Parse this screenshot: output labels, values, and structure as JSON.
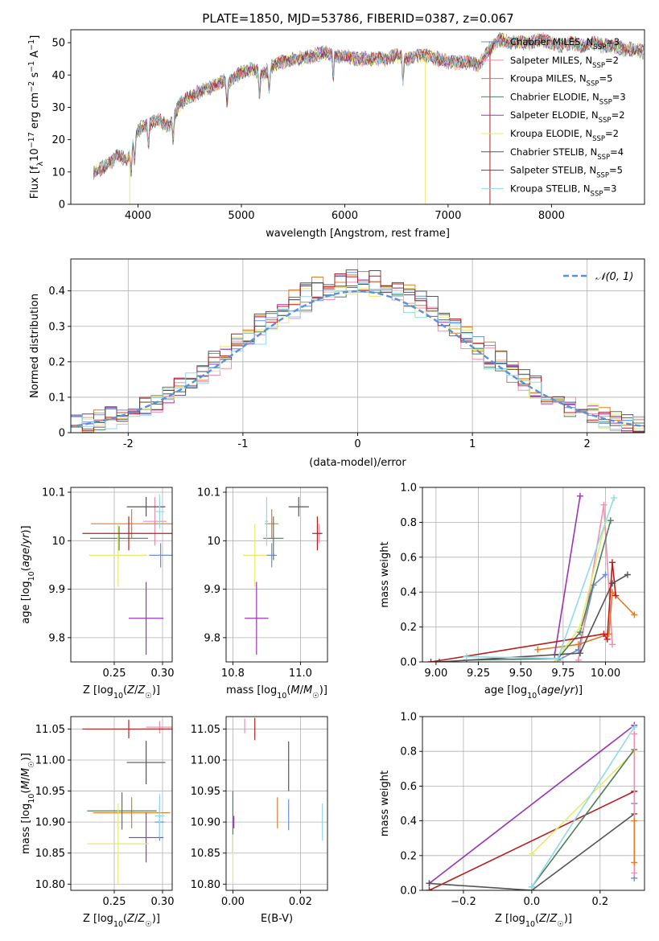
{
  "title": "PLATE=1850, MJD=53786, FIBERID=0387, z=0.067",
  "colors": {
    "Chabrier MILES": "#6c8ed8",
    "Salpeter MILES": "#ef8fb0",
    "Kroupa MILES": "#e07b27",
    "Chabrier ELODIE": "#4f7d5a",
    "Salpeter ELODIE": "#9a35b3",
    "Kroupa ELODIE": "#e6ea6a",
    "Chabrier STELIB": "#555555",
    "Salpeter STELIB": "#b71f1f",
    "Kroupa STELIB": "#8fd9e8"
  },
  "legend": [
    {
      "model": "Chabrier MILES",
      "text": "Chabrier MILES, N",
      "sub": "SSP",
      "n": "=3"
    },
    {
      "model": "Salpeter MILES",
      "text": "Salpeter MILES, N",
      "sub": "SSP",
      "n": "=2"
    },
    {
      "model": "Kroupa MILES",
      "text": "Kroupa MILES, N",
      "sub": "SSP",
      "n": "=5"
    },
    {
      "model": "Chabrier ELODIE",
      "text": "Chabrier ELODIE, N",
      "sub": "SSP",
      "n": "=3"
    },
    {
      "model": "Salpeter ELODIE",
      "text": "Salpeter ELODIE, N",
      "sub": "SSP",
      "n": "=2"
    },
    {
      "model": "Kroupa ELODIE",
      "text": "Kroupa ELODIE, N",
      "sub": "SSP",
      "n": "=2"
    },
    {
      "model": "Chabrier STELIB",
      "text": "Chabrier STELIB, N",
      "sub": "SSP",
      "n": "=4"
    },
    {
      "model": "Salpeter STELIB",
      "text": "Salpeter STELIB, N",
      "sub": "SSP",
      "n": "=5"
    },
    {
      "model": "Kroupa STELIB",
      "text": "Kroupa STELIB, N",
      "sub": "SSP",
      "n": "=3"
    }
  ],
  "chart_data": [
    {
      "id": "spectrum",
      "type": "line",
      "title": "PLATE=1850, MJD=53786, FIBERID=0387, z=0.067",
      "xlabel": "wavelength [Angstrom, rest frame]",
      "ylabel": "Flux [f_λ 10^-17 erg cm^-2 s^-1 A^-1]",
      "xlim": [
        3350,
        8900
      ],
      "ylim": [
        0,
        54
      ],
      "xticks": [
        4000,
        5000,
        6000,
        7000,
        8000
      ],
      "yticks": [
        0,
        10,
        20,
        30,
        40,
        50
      ],
      "continuum": [
        [
          3570,
          10
        ],
        [
          3700,
          12
        ],
        [
          3800,
          15
        ],
        [
          3900,
          14
        ],
        [
          4000,
          23
        ],
        [
          4100,
          25
        ],
        [
          4200,
          26
        ],
        [
          4300,
          24
        ],
        [
          4400,
          31
        ],
        [
          4500,
          33
        ],
        [
          4600,
          35
        ],
        [
          4700,
          36
        ],
        [
          4800,
          38
        ],
        [
          4900,
          38
        ],
        [
          5000,
          41
        ],
        [
          5100,
          42
        ],
        [
          5200,
          40
        ],
        [
          5300,
          43
        ],
        [
          5400,
          44
        ],
        [
          5500,
          45
        ],
        [
          5600,
          45
        ],
        [
          5700,
          46
        ],
        [
          5800,
          47
        ],
        [
          5900,
          46
        ],
        [
          6000,
          46
        ],
        [
          6100,
          45
        ],
        [
          6200,
          45
        ],
        [
          6300,
          45
        ],
        [
          6400,
          45
        ],
        [
          6500,
          46
        ],
        [
          6600,
          45
        ],
        [
          6700,
          46
        ],
        [
          6800,
          46
        ],
        [
          6900,
          45
        ],
        [
          7000,
          44
        ],
        [
          7100,
          44
        ],
        [
          7200,
          44
        ],
        [
          7300,
          43
        ],
        [
          7400,
          48
        ],
        [
          7500,
          51
        ],
        [
          7600,
          50
        ],
        [
          7700,
          50
        ],
        [
          7800,
          50
        ],
        [
          7900,
          51
        ],
        [
          8000,
          50
        ],
        [
          8100,
          49
        ],
        [
          8200,
          50
        ],
        [
          8300,
          49
        ],
        [
          8400,
          50
        ],
        [
          8500,
          49
        ],
        [
          8600,
          49
        ],
        [
          8700,
          48
        ],
        [
          8800,
          48
        ],
        [
          8900,
          47
        ]
      ],
      "absorption_lines": [
        3934,
        3968,
        4101,
        4340,
        4861,
        5175,
        5270,
        5890,
        6563
      ],
      "spikes": [
        {
          "x": 3920,
          "model": "Kroupa ELODIE"
        },
        {
          "x": 6780,
          "model": "Kroupa ELODIE"
        },
        {
          "x": 7405,
          "model": "Salpeter STELIB"
        }
      ]
    },
    {
      "id": "residuals",
      "type": "area",
      "xlabel": "(data-model)/error",
      "ylabel": "Normed distribution",
      "xlim": [
        -2.5,
        2.5
      ],
      "ylim": [
        0,
        0.49
      ],
      "xticks": [
        -2,
        -1,
        0,
        1,
        2
      ],
      "yticks": [
        0.0,
        0.1,
        0.2,
        0.3,
        0.4
      ],
      "bin_width": 0.1,
      "series": [
        {
          "name": "Chabrier MILES",
          "amp": 1.06,
          "mode": 0.0
        },
        {
          "name": "Salpeter MILES",
          "amp": 1.02,
          "mode": 0.0
        },
        {
          "name": "Kroupa MILES",
          "amp": 1.1,
          "mode": 0.0
        },
        {
          "name": "Chabrier ELODIE",
          "amp": 1.04,
          "mode": 0.0
        },
        {
          "name": "Salpeter ELODIE",
          "amp": 1.08,
          "mode": 0.0
        },
        {
          "name": "Kroupa ELODIE",
          "amp": 1.05,
          "mode": 0.0
        },
        {
          "name": "Chabrier STELIB",
          "amp": 1.1,
          "mode": 0.0
        },
        {
          "name": "Salpeter STELIB",
          "amp": 1.08,
          "mode": 0.0
        },
        {
          "name": "Kroupa STELIB",
          "amp": 1.0,
          "mode": 0.0
        }
      ],
      "reference": {
        "name": "𝒩(0, 1)",
        "mean": 0,
        "sd": 1
      }
    },
    {
      "id": "age_vs_Z",
      "type": "scatter",
      "xlabel": "Z [log10(Z/Z☉)]",
      "ylabel": "age [log10(age/yr)]",
      "xlim": [
        0.205,
        0.31
      ],
      "ylim": [
        9.75,
        10.11
      ],
      "xticks": [
        0.25,
        0.3
      ],
      "xticklabels": [
        "0.25",
        "0.30"
      ],
      "yticks": [
        9.8,
        9.9,
        10.0,
        10.1
      ],
      "points": [
        {
          "model": "Chabrier MILES",
          "x": 0.298,
          "xerr": 0.012,
          "y": 9.97,
          "yerr": 0.025
        },
        {
          "model": "Salpeter MILES",
          "x": 0.292,
          "xerr": 0.012,
          "y": 10.04,
          "yerr": 0.05
        },
        {
          "model": "Kroupa MILES",
          "x": 0.268,
          "xerr": 0.042,
          "y": 10.035,
          "yerr": 0.03
        },
        {
          "model": "Chabrier ELODIE",
          "x": 0.255,
          "xerr": 0.03,
          "y": 10.005,
          "yerr": 0.025
        },
        {
          "model": "Salpeter ELODIE",
          "x": 0.283,
          "xerr": 0.018,
          "y": 9.84,
          "yerr": 0.075
        },
        {
          "model": "Kroupa ELODIE",
          "x": 0.254,
          "xerr": 0.03,
          "y": 9.97,
          "yerr": 0.065
        },
        {
          "model": "Chabrier STELIB",
          "x": 0.283,
          "xerr": 0.02,
          "y": 10.07,
          "yerr": 0.02
        },
        {
          "model": "Salpeter STELIB",
          "x": 0.265,
          "xerr": 0.048,
          "y": 10.015,
          "yerr": 0.035
        },
        {
          "model": "Kroupa STELIB",
          "x": 0.297,
          "xerr": 0.005,
          "y": 10.06,
          "yerr": 0.035
        }
      ]
    },
    {
      "id": "age_vs_mass",
      "type": "scatter",
      "xlabel": "mass [log10(M/M☉)]",
      "ylabel": "",
      "xlim": [
        10.78,
        11.08
      ],
      "ylim": [
        9.75,
        10.11
      ],
      "xticks": [
        10.8,
        11.0
      ],
      "xticklabels": [
        "10.8",
        "11.0"
      ],
      "yticks": [
        9.8,
        9.9,
        10.0,
        10.1
      ],
      "points": [
        {
          "model": "Chabrier MILES",
          "x": 10.915,
          "xerr": 0.015,
          "y": 9.97,
          "yerr": 0.025
        },
        {
          "model": "Salpeter MILES",
          "x": 11.055,
          "xerr": 0.008,
          "y": 10.015,
          "yerr": 0.02
        },
        {
          "model": "Kroupa MILES",
          "x": 10.915,
          "xerr": 0.02,
          "y": 10.035,
          "yerr": 0.03
        },
        {
          "model": "Chabrier ELODIE",
          "x": 10.92,
          "xerr": 0.03,
          "y": 10.005,
          "yerr": 0.045
        },
        {
          "model": "Salpeter ELODIE",
          "x": 10.87,
          "xerr": 0.035,
          "y": 9.84,
          "yerr": 0.075
        },
        {
          "model": "Kroupa ELODIE",
          "x": 10.865,
          "xerr": 0.035,
          "y": 9.97,
          "yerr": 0.065
        },
        {
          "model": "Chabrier STELIB",
          "x": 10.995,
          "xerr": 0.03,
          "y": 10.07,
          "yerr": 0.02
        },
        {
          "model": "Salpeter STELIB",
          "x": 11.05,
          "xerr": 0.015,
          "y": 10.015,
          "yerr": 0.035
        },
        {
          "model": "Kroupa STELIB",
          "x": 10.9,
          "xerr": 0.005,
          "y": 10.04,
          "yerr": 0.05
        }
      ]
    },
    {
      "id": "massweight_vs_age",
      "type": "line",
      "xlabel": "age [log10(age/yr)]",
      "ylabel": "mass weight",
      "xlim": [
        8.92,
        10.23
      ],
      "ylim": [
        0,
        1
      ],
      "xticks": [
        9.0,
        9.25,
        9.5,
        9.75,
        10.0
      ],
      "xticklabels": [
        "9.00",
        "9.25",
        "9.50",
        "9.75",
        "10.00"
      ],
      "yticks": [
        0.0,
        0.2,
        0.4,
        0.6,
        0.8,
        1.0
      ],
      "yticklabels": [
        "0.0",
        "0.2",
        "0.4",
        "0.6",
        "0.8",
        "1.0"
      ],
      "series": [
        {
          "name": "Chabrier MILES",
          "x": [
            9.72,
            9.84,
            9.93,
            10.0
          ],
          "y": [
            0.01,
            0.07,
            0.44,
            0.5
          ]
        },
        {
          "name": "Salpeter MILES",
          "x": [
            9.84,
            9.99,
            10.04
          ],
          "y": [
            0.01,
            0.9,
            0.1
          ]
        },
        {
          "name": "Kroupa MILES",
          "x": [
            9.6,
            9.84,
            10.02,
            10.04,
            10.17
          ],
          "y": [
            0.07,
            0.1,
            0.16,
            0.4,
            0.27
          ]
        },
        {
          "name": "Chabrier ELODIE",
          "x": [
            9.18,
            9.72,
            9.85,
            10.03
          ],
          "y": [
            0.01,
            0.02,
            0.17,
            0.81
          ]
        },
        {
          "name": "Salpeter ELODIE",
          "x": [
            9.7,
            9.85
          ],
          "y": [
            0.04,
            0.95
          ]
        },
        {
          "name": "Kroupa ELODIE",
          "x": [
            9.7,
            9.85,
            10.0
          ],
          "y": [
            0.0,
            0.2,
            0.8
          ]
        },
        {
          "name": "Chabrier STELIB",
          "x": [
            9.02,
            9.85,
            10.04,
            10.13
          ],
          "y": [
            0.0,
            0.05,
            0.45,
            0.5
          ]
        },
        {
          "name": "Salpeter STELIB",
          "x": [
            8.97,
            9.99,
            10.01,
            10.04,
            10.06
          ],
          "y": [
            0.0,
            0.16,
            0.13,
            0.57,
            0.38
          ]
        },
        {
          "name": "Kroupa STELIB",
          "x": [
            9.18,
            9.72,
            10.05
          ],
          "y": [
            0.03,
            0.02,
            0.94
          ]
        }
      ]
    },
    {
      "id": "mass_vs_Z",
      "type": "scatter",
      "xlabel": "Z [log10(Z/Z☉)]",
      "ylabel": "mass [log10(M/M☉)]",
      "xlim": [
        0.205,
        0.31
      ],
      "ylim": [
        10.79,
        11.07
      ],
      "xticks": [
        0.25,
        0.3
      ],
      "xticklabels": [
        "0.25",
        "0.30"
      ],
      "yticks": [
        10.8,
        10.85,
        10.9,
        10.95,
        11.0,
        11.05
      ],
      "yticklabels": [
        "10.80",
        "10.85",
        "10.90",
        "10.95",
        "11.00",
        "11.05"
      ],
      "points": [
        {
          "model": "Chabrier MILES",
          "x": 0.297,
          "xerr": 0.005,
          "y": 10.9,
          "yerr": 0.03
        },
        {
          "model": "Salpeter MILES",
          "x": 0.297,
          "xerr": 0.014,
          "y": 11.053,
          "yerr": 0.01
        },
        {
          "model": "Kroupa MILES",
          "x": 0.268,
          "xerr": 0.04,
          "y": 10.915,
          "yerr": 0.025
        },
        {
          "model": "Chabrier ELODIE",
          "x": 0.258,
          "xerr": 0.036,
          "y": 10.918,
          "yerr": 0.03
        },
        {
          "model": "Salpeter ELODIE",
          "x": 0.283,
          "xerr": 0.018,
          "y": 10.875,
          "yerr": 0.04
        },
        {
          "model": "Kroupa ELODIE",
          "x": 0.254,
          "xerr": 0.032,
          "y": 10.865,
          "yerr": 0.065
        },
        {
          "model": "Chabrier STELIB",
          "x": 0.283,
          "xerr": 0.02,
          "y": 10.996,
          "yerr": 0.035
        },
        {
          "model": "Salpeter STELIB",
          "x": 0.265,
          "xerr": 0.048,
          "y": 11.05,
          "yerr": 0.015
        },
        {
          "model": "Kroupa STELIB",
          "x": 0.297,
          "xerr": 0.005,
          "y": 10.91,
          "yerr": 0.035
        }
      ]
    },
    {
      "id": "mass_vs_EBV",
      "type": "scatter",
      "xlabel": "E(B-V)",
      "ylabel": "",
      "xlim": [
        -0.002,
        0.028
      ],
      "ylim": [
        10.79,
        11.07
      ],
      "xticks": [
        0.0,
        0.02
      ],
      "xticklabels": [
        "0.00",
        "0.02"
      ],
      "yticks": [
        10.8,
        10.85,
        10.9,
        10.95,
        11.0,
        11.05
      ],
      "yticklabels": [
        "10.80",
        "10.85",
        "10.90",
        "10.95",
        "11.00",
        "11.05"
      ],
      "points": [
        {
          "model": "Chabrier MILES",
          "x": 0.0165,
          "xerr": 0,
          "y": 10.912,
          "yerr": 0.025
        },
        {
          "model": "Salpeter MILES",
          "x": 0.0035,
          "xerr": 0,
          "y": 11.055,
          "yerr": 0.012
        },
        {
          "model": "Kroupa MILES",
          "x": 0.0132,
          "xerr": 0,
          "y": 10.915,
          "yerr": 0.025
        },
        {
          "model": "Chabrier ELODIE",
          "x": 0.0,
          "xerr": 0,
          "y": 10.9,
          "yerr": 0.05
        },
        {
          "model": "Salpeter ELODIE",
          "x": 0.0003,
          "xerr": 0,
          "y": 10.9,
          "yerr": 0.01
        },
        {
          "model": "Kroupa ELODIE",
          "x": 0.0,
          "xerr": 0,
          "y": 10.84,
          "yerr": 0.04
        },
        {
          "model": "Chabrier STELIB",
          "x": 0.0165,
          "xerr": 0,
          "y": 10.99,
          "yerr": 0.04
        },
        {
          "model": "Salpeter STELIB",
          "x": 0.0065,
          "xerr": 0,
          "y": 11.05,
          "yerr": 0.018
        },
        {
          "model": "Kroupa STELIB",
          "x": 0.0265,
          "xerr": 0,
          "y": 10.9,
          "yerr": 0.03
        }
      ]
    },
    {
      "id": "massweight_vs_Z",
      "type": "line",
      "xlabel": "Z [log10(Z/Z☉)]",
      "ylabel": "mass weight",
      "xlim": [
        -0.32,
        0.33
      ],
      "ylim": [
        0,
        1
      ],
      "xticks": [
        -0.2,
        0.0,
        0.2
      ],
      "xticklabels": [
        "−0.2",
        "0.0",
        "0.2"
      ],
      "yticks": [
        0.0,
        0.2,
        0.4,
        0.6,
        0.8,
        1.0
      ],
      "yticklabels": [
        "0.0",
        "0.2",
        "0.4",
        "0.6",
        "0.8",
        "1.0"
      ],
      "series": [
        {
          "name": "Salpeter ELODIE",
          "x": [
            -0.3,
            0.3
          ],
          "y": [
            0.04,
            0.95
          ]
        },
        {
          "name": "Salpeter STELIB",
          "x": [
            -0.3,
            0.3
          ],
          "y": [
            0.0,
            0.57
          ]
        },
        {
          "name": "Chabrier STELIB",
          "x": [
            -0.3,
            0.0,
            0.3
          ],
          "y": [
            0.04,
            0.0,
            0.44
          ]
        },
        {
          "name": "Kroupa ELODIE",
          "x": [
            0.0,
            0.3
          ],
          "y": [
            0.21,
            0.8
          ]
        },
        {
          "name": "Chabrier ELODIE",
          "x": [
            0.0,
            0.3
          ],
          "y": [
            0.02,
            0.81
          ]
        },
        {
          "name": "Kroupa STELIB",
          "x": [
            0.0,
            0.3
          ],
          "y": [
            0.02,
            0.94
          ]
        },
        {
          "name": "Chabrier MILES",
          "x": [
            0.3,
            0.3
          ],
          "y": [
            0.07,
            0.5
          ]
        },
        {
          "name": "Salpeter MILES",
          "x": [
            0.3,
            0.3
          ],
          "y": [
            0.1,
            0.9
          ]
        },
        {
          "name": "Kroupa MILES",
          "x": [
            0.3,
            0.3
          ],
          "y": [
            0.16,
            0.4
          ]
        }
      ]
    }
  ]
}
